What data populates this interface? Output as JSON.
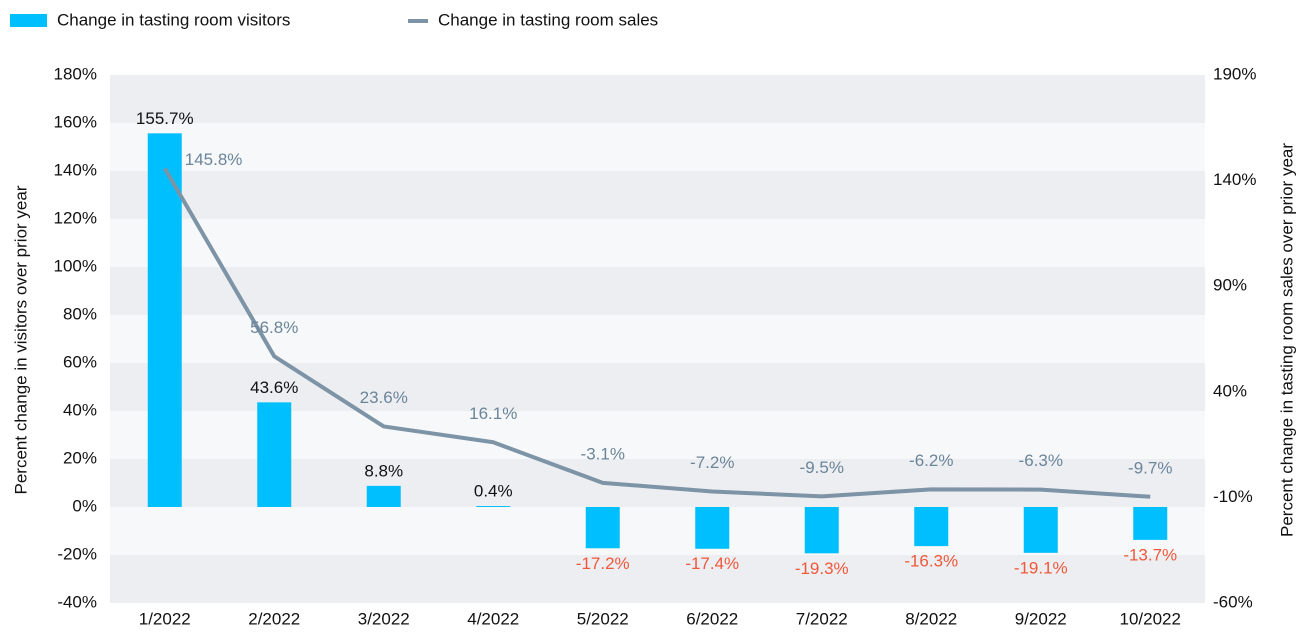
{
  "chart_data": {
    "type": "combo",
    "categories": [
      "1/2022",
      "2/2022",
      "3/2022",
      "4/2022",
      "5/2022",
      "6/2022",
      "7/2022",
      "8/2022",
      "9/2022",
      "10/2022"
    ],
    "series": [
      {
        "name": "Change in tasting room visitors",
        "type": "bar",
        "color": "#00bfff",
        "label_color": "#111111",
        "negative_label_color": "#f0583a",
        "values": [
          155.7,
          43.6,
          8.8,
          0.4,
          -17.2,
          -17.4,
          -19.3,
          -16.3,
          -19.1,
          -13.7
        ],
        "value_labels": [
          "155.7%",
          "43.6%",
          "8.8%",
          "0.4%",
          "-17.2%",
          "-17.4%",
          "-19.3%",
          "-16.3%",
          "-19.1%",
          "-13.7%"
        ]
      },
      {
        "name": "Change in tasting room sales",
        "type": "line",
        "axis": "y2",
        "color": "#7d93a6",
        "label_color": "#6b8599",
        "values": [
          145.8,
          56.8,
          23.6,
          16.1,
          -3.1,
          -7.2,
          -9.5,
          -6.2,
          -6.3,
          -9.7
        ],
        "value_labels": [
          "145.8%",
          "56.8%",
          "23.6%",
          "16.1%",
          "-3.1%",
          "-7.2%",
          "-9.5%",
          "-6.2%",
          "-6.3%",
          "-9.7%"
        ]
      }
    ],
    "y_label": "Percent change in visitors over prior year",
    "y2_label": "Percent change in tasting room sales over prior year",
    "ylim": [
      -40,
      180
    ],
    "yticks": [
      {
        "value": -40,
        "label": "-40%"
      },
      {
        "value": -20,
        "label": "-20%"
      },
      {
        "value": 0,
        "label": "0%"
      },
      {
        "value": 20,
        "label": "20%"
      },
      {
        "value": 40,
        "label": "40%"
      },
      {
        "value": 60,
        "label": "60%"
      },
      {
        "value": 80,
        "label": "80%"
      },
      {
        "value": 100,
        "label": "100%"
      },
      {
        "value": 120,
        "label": "120%"
      },
      {
        "value": 140,
        "label": "140%"
      },
      {
        "value": 160,
        "label": "160%"
      },
      {
        "value": 180,
        "label": "180%"
      }
    ],
    "y2lim": [
      -60,
      190
    ],
    "y2ticks": [
      {
        "value": -60,
        "label": "-60%"
      },
      {
        "value": -10,
        "label": "-10%"
      },
      {
        "value": 40,
        "label": "40%"
      },
      {
        "value": 90,
        "label": "90%"
      },
      {
        "value": 140,
        "label": "140%"
      },
      {
        "value": 190,
        "label": "190%"
      }
    ],
    "grid": true,
    "legend": "top-left"
  }
}
